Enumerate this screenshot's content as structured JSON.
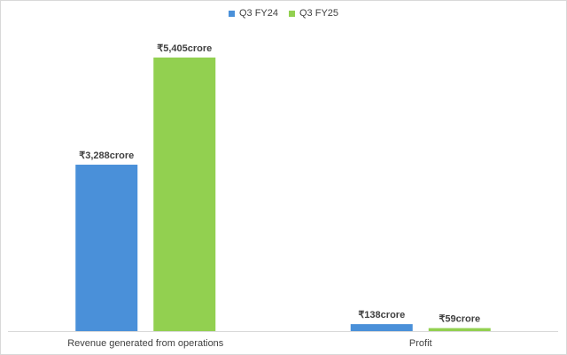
{
  "chart_data": {
    "type": "bar",
    "categories": [
      "Revenue generated from operations",
      "Profit"
    ],
    "series": [
      {
        "name": "Q3 FY24",
        "color": "#4a90d9",
        "values": [
          3288,
          138
        ],
        "labels": [
          "₹3,288crore",
          "₹138crore"
        ]
      },
      {
        "name": "Q3 FY25",
        "color": "#92d050",
        "values": [
          5405,
          59
        ],
        "labels": [
          "₹5,405crore",
          "₹59crore"
        ]
      }
    ],
    "title": "",
    "xlabel": "",
    "ylabel": "",
    "ylim": [
      0,
      5405
    ],
    "grid": false,
    "legend": "top-center"
  }
}
